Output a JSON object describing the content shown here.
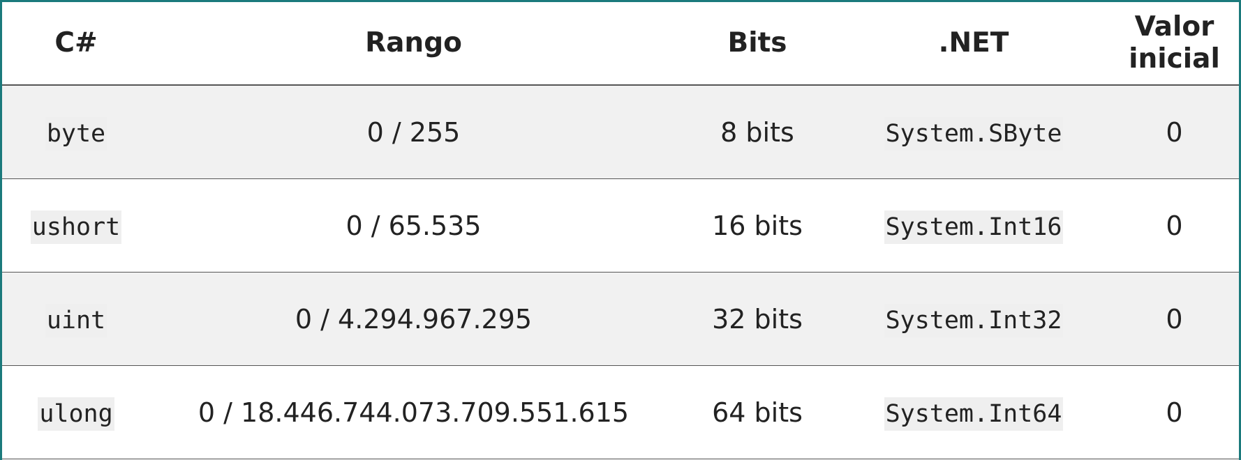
{
  "table": {
    "header": [
      "C#",
      "Rango",
      "Bits",
      ".NET",
      "Valor inicial"
    ],
    "rows": [
      [
        "byte",
        "0 / 255",
        "8 bits",
        "System.SByte",
        "0"
      ],
      [
        "ushort",
        "0 / 65.535",
        "16 bits",
        "System.Int16",
        "0"
      ],
      [
        "uint",
        "0 / 4.294.967.295",
        "32 bits",
        "System.Int32",
        "0"
      ],
      [
        "ulong",
        "0 / 18.446.744.073.709.551.615",
        "64 bits",
        "System.Int64",
        "0"
      ]
    ]
  }
}
